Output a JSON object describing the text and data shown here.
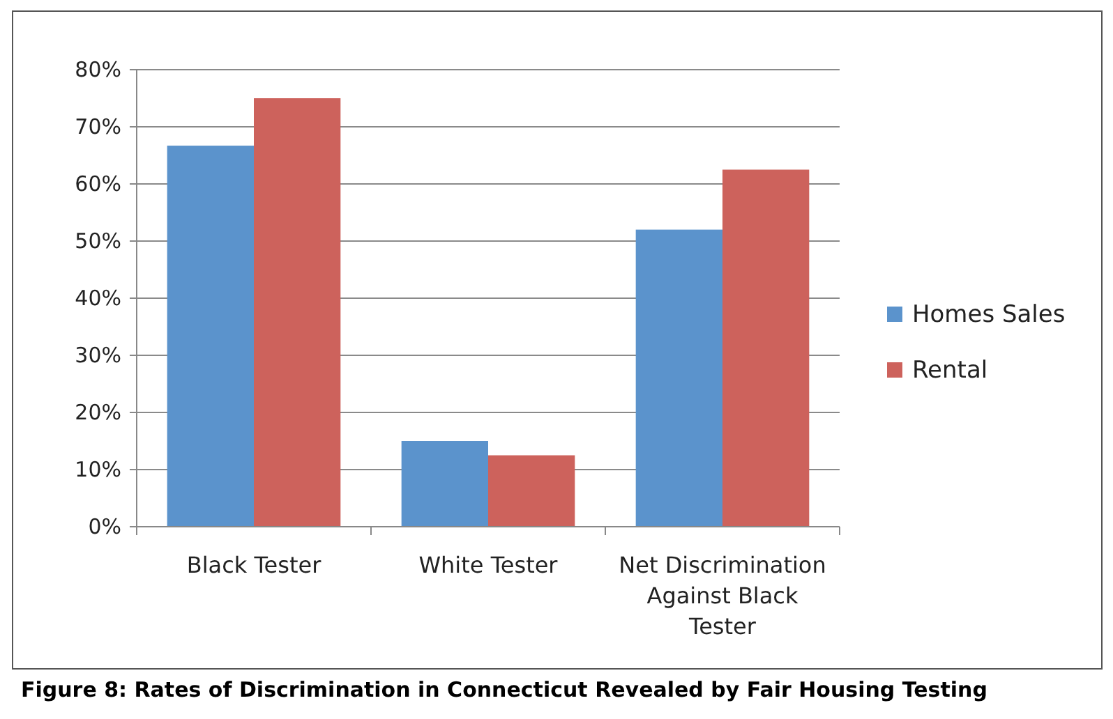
{
  "chart_data": {
    "type": "bar",
    "title": "Figure 8: Rates of Discrimination in Connecticut Revealed by Fair Housing Testing",
    "categories": [
      "Black Tester",
      "White Tester",
      "Net Discrimination Against Black Tester"
    ],
    "series": [
      {
        "name": "Homes Sales",
        "color": "#5b93cc",
        "values": [
          66.7,
          15,
          52
        ]
      },
      {
        "name": "Rental",
        "color": "#cd625c",
        "values": [
          75,
          12.5,
          62.5
        ]
      }
    ],
    "ylim": [
      0,
      80
    ],
    "yticks": [
      {
        "value": 0,
        "label": "0%"
      },
      {
        "value": 10,
        "label": "10%"
      },
      {
        "value": 20,
        "label": "20%"
      },
      {
        "value": 30,
        "label": "30%"
      },
      {
        "value": 40,
        "label": "40%"
      },
      {
        "value": 50,
        "label": "50%"
      },
      {
        "value": 60,
        "label": "60%"
      },
      {
        "value": 70,
        "label": "70%"
      },
      {
        "value": 80,
        "label": "80%"
      }
    ],
    "grid": "y",
    "legend": "right"
  }
}
